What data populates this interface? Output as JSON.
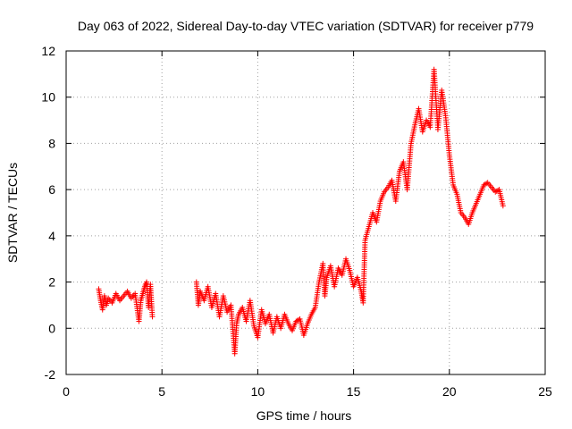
{
  "chart_data": {
    "type": "scatter",
    "title": "Day 063 of 2022, Sidereal Day-to-day VTEC variation (SDTVAR) for receiver p779",
    "xlabel": "GPS time / hours",
    "ylabel": "SDTVAR / TECUs",
    "xlim": [
      0,
      25
    ],
    "ylim": [
      -2,
      12
    ],
    "xticks": [
      "0",
      "5",
      "10",
      "15",
      "20",
      "25"
    ],
    "yticks": [
      "-2",
      "0",
      "2",
      "4",
      "6",
      "8",
      "10",
      "12"
    ],
    "grid": true,
    "marker": "+",
    "series": [
      {
        "name": "SDTVAR",
        "color": "#ff0000",
        "x": [
          1.7,
          1.8,
          1.9,
          2.0,
          2.1,
          2.2,
          2.4,
          2.6,
          2.8,
          3.0,
          3.2,
          3.4,
          3.6,
          3.8,
          3.9,
          4.0,
          4.1,
          4.2,
          4.3,
          4.4,
          4.5,
          6.8,
          6.9,
          7.0,
          7.2,
          7.4,
          7.6,
          7.8,
          8.0,
          8.2,
          8.4,
          8.6,
          8.8,
          8.9,
          9.0,
          9.2,
          9.4,
          9.6,
          9.8,
          10.0,
          10.2,
          10.4,
          10.6,
          10.8,
          11.0,
          11.2,
          11.4,
          11.6,
          11.8,
          12.0,
          12.2,
          12.4,
          12.6,
          12.8,
          13.0,
          13.2,
          13.4,
          13.5,
          13.6,
          13.8,
          14.0,
          14.2,
          14.4,
          14.6,
          14.8,
          15.0,
          15.2,
          15.4,
          15.5,
          15.6,
          15.8,
          16.0,
          16.2,
          16.4,
          16.6,
          16.8,
          17.0,
          17.2,
          17.4,
          17.6,
          17.8,
          18.0,
          18.2,
          18.4,
          18.6,
          18.8,
          19.0,
          19.2,
          19.4,
          19.6,
          19.8,
          20.0,
          20.2,
          20.4,
          20.6,
          20.8,
          21.0,
          21.2,
          21.4,
          21.6,
          21.8,
          22.0,
          22.2,
          22.4,
          22.6,
          22.8
        ],
        "y": [
          1.7,
          1.2,
          0.8,
          1.4,
          1.0,
          1.3,
          1.1,
          1.5,
          1.2,
          1.4,
          1.6,
          1.3,
          1.5,
          0.3,
          1.2,
          1.5,
          1.8,
          2.0,
          0.9,
          1.9,
          0.5,
          2.0,
          1.0,
          1.6,
          1.2,
          1.8,
          0.9,
          1.5,
          0.5,
          1.4,
          0.7,
          1.0,
          -1.1,
          0.2,
          0.6,
          0.9,
          0.3,
          1.2,
          0.1,
          -0.4,
          0.8,
          0.2,
          0.6,
          -0.2,
          0.5,
          0.0,
          0.6,
          0.2,
          -0.1,
          0.3,
          0.4,
          -0.3,
          0.2,
          0.6,
          0.9,
          2.0,
          2.8,
          1.4,
          2.2,
          2.7,
          1.8,
          2.6,
          2.3,
          3.0,
          2.5,
          1.8,
          2.2,
          1.6,
          1.1,
          3.8,
          4.4,
          5.0,
          4.6,
          5.5,
          5.9,
          6.1,
          6.4,
          5.5,
          6.8,
          7.2,
          6.0,
          8.0,
          8.8,
          9.5,
          8.5,
          9.0,
          8.7,
          11.2,
          8.6,
          10.3,
          9.2,
          7.5,
          6.2,
          5.8,
          5.0,
          4.8,
          4.5,
          5.0,
          5.4,
          5.8,
          6.2,
          6.3,
          6.1,
          5.9,
          6.0,
          5.3
        ]
      }
    ]
  }
}
